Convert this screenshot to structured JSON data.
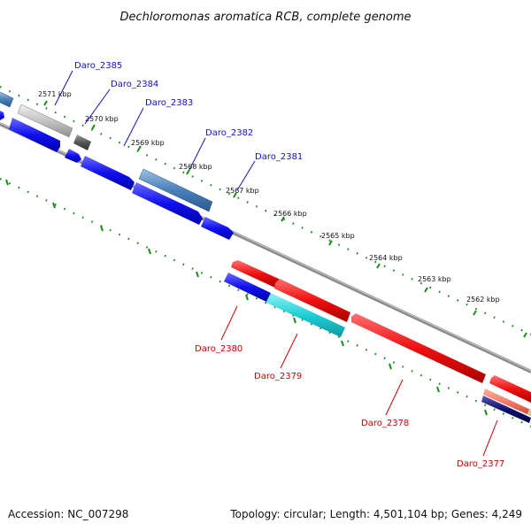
{
  "title": "Dechloromonas aromatica RCB, complete genome",
  "footer": {
    "accession": "Accession: NC_007298",
    "topology": "Topology: circular; Length: 4,501,104 bp; Genes: 4,249"
  },
  "colors": {
    "backbone": "#8a8a8a",
    "tick_green": "#1a8a1a",
    "label_top": "#1010c8",
    "label_bottom": "#cc0000"
  },
  "kbp_labels": [
    "2571 kbp",
    "2570 kbp",
    "2569 kbp",
    "2568 kbp",
    "2567 kbp",
    "2566 kbp",
    "2565 kbp",
    "2564 kbp",
    "2563 kbp",
    "2562 kbp"
  ],
  "genes_top": [
    {
      "label": "Daro_2385",
      "color": "#c8c8c8"
    },
    {
      "label": "Daro_2384",
      "color": "#0a0ae6"
    },
    {
      "label": "Daro_2383",
      "color": "#0a0ae6"
    },
    {
      "label": "Daro_2382",
      "color": "#4a7fb8"
    },
    {
      "label": "Daro_2381",
      "color": "#0a0ae6"
    }
  ],
  "genes_bottom": [
    {
      "label": "Daro_2380",
      "color": "#1a1ae6"
    },
    {
      "label": "Daro_2379",
      "color": "#1ecfd6"
    },
    {
      "label": "Daro_2378",
      "color": "#e60a0a"
    },
    {
      "label": "Daro_2377",
      "color": "#e60a0a"
    }
  ]
}
